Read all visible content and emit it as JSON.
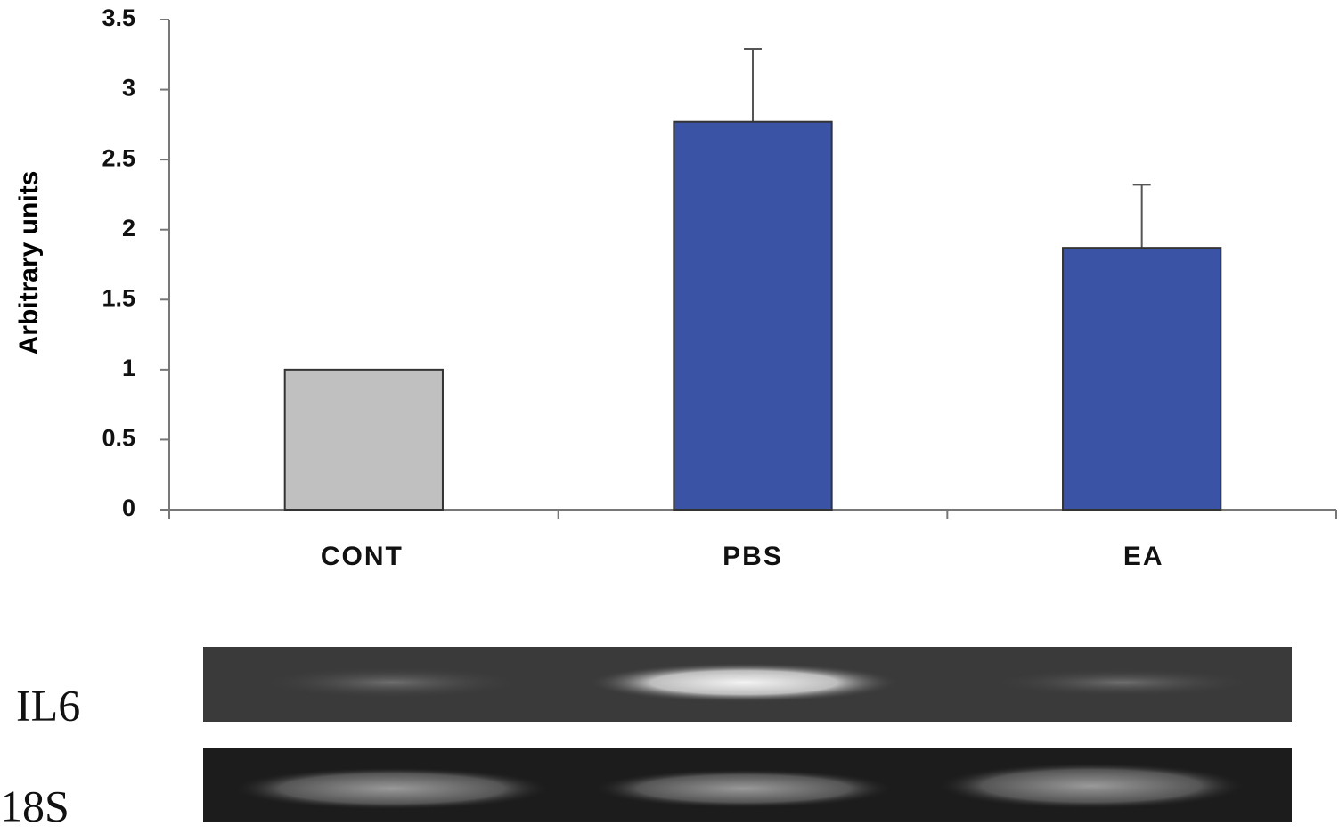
{
  "chart_data": {
    "type": "bar",
    "ylabel": "Arbitrary units",
    "categories": [
      "CONT",
      "PBS",
      "EA"
    ],
    "values": [
      1,
      2.77,
      1.87
    ],
    "errors": [
      null,
      0.52,
      0.45
    ],
    "colors": [
      "#c0c0c0",
      "#3a53a4",
      "#3a53a4"
    ],
    "ylim": [
      0,
      3.5
    ],
    "yticks": [
      0,
      0.5,
      1,
      1.5,
      2,
      2.5,
      3,
      3.5
    ],
    "grid": false
  },
  "gel": {
    "rows": [
      "IL6",
      "18S"
    ]
  }
}
